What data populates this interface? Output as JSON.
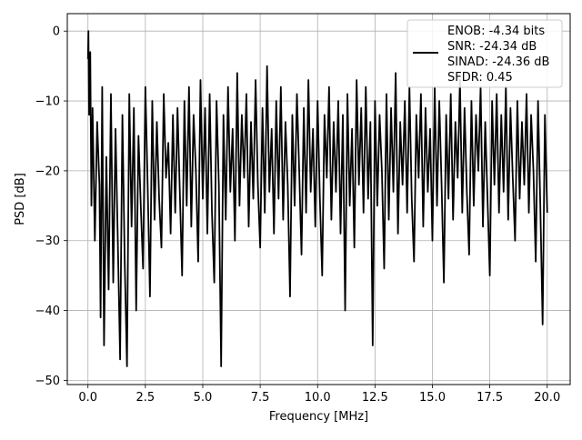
{
  "chart_data": {
    "type": "line",
    "title": "",
    "xlabel": "Frequency [MHz]",
    "ylabel": "PSD [dB]",
    "xlim": [
      -0.9,
      21.0
    ],
    "ylim": [
      -50.6,
      2.5
    ],
    "x_ticks": [
      0.0,
      2.5,
      5.0,
      7.5,
      10.0,
      12.5,
      15.0,
      17.5,
      20.0
    ],
    "x_tick_labels": [
      "0.0",
      "2.5",
      "5.0",
      "7.5",
      "10.0",
      "12.5",
      "15.0",
      "17.5",
      "20.0"
    ],
    "y_ticks": [
      0,
      -10,
      -20,
      -30,
      -40,
      -50
    ],
    "y_tick_labels": [
      "0",
      "−10",
      "−20",
      "−30",
      "−40",
      "−50"
    ],
    "grid": true,
    "legend_position": "top-right",
    "legend_lines": [
      "ENOB: -4.34 bits",
      "SNR: -24.34 dB",
      "SINAD: -24.36 dB",
      "SFDR: 0.45"
    ],
    "line_color": "#000000",
    "series": [
      {
        "name": "ENOB: -4.34 bits",
        "points": [
          [
            0.0,
            -4.0
          ],
          [
            0.02,
            0.0
          ],
          [
            0.05,
            -12.0
          ],
          [
            0.1,
            -3.0
          ],
          [
            0.15,
            -25.0
          ],
          [
            0.2,
            -11.0
          ],
          [
            0.3,
            -30.0
          ],
          [
            0.4,
            -13.0
          ],
          [
            0.5,
            -22.0
          ],
          [
            0.55,
            -41.0
          ],
          [
            0.62,
            -8.0
          ],
          [
            0.7,
            -45.0
          ],
          [
            0.8,
            -18.0
          ],
          [
            0.9,
            -37.0
          ],
          [
            1.0,
            -9.0
          ],
          [
            1.1,
            -36.0
          ],
          [
            1.2,
            -14.0
          ],
          [
            1.3,
            -30.0
          ],
          [
            1.4,
            -47.0
          ],
          [
            1.5,
            -12.0
          ],
          [
            1.6,
            -33.0
          ],
          [
            1.7,
            -48.0
          ],
          [
            1.8,
            -9.0
          ],
          [
            1.9,
            -28.0
          ],
          [
            2.0,
            -11.0
          ],
          [
            2.1,
            -40.0
          ],
          [
            2.2,
            -15.0
          ],
          [
            2.3,
            -25.0
          ],
          [
            2.4,
            -34.0
          ],
          [
            2.5,
            -8.0
          ],
          [
            2.6,
            -22.0
          ],
          [
            2.7,
            -38.0
          ],
          [
            2.8,
            -10.0
          ],
          [
            2.9,
            -27.0
          ],
          [
            3.0,
            -13.0
          ],
          [
            3.1,
            -24.0
          ],
          [
            3.2,
            -31.0
          ],
          [
            3.3,
            -9.0
          ],
          [
            3.4,
            -21.0
          ],
          [
            3.5,
            -16.0
          ],
          [
            3.6,
            -29.0
          ],
          [
            3.7,
            -12.0
          ],
          [
            3.8,
            -26.0
          ],
          [
            3.9,
            -11.0
          ],
          [
            4.0,
            -23.0
          ],
          [
            4.1,
            -35.0
          ],
          [
            4.2,
            -10.0
          ],
          [
            4.3,
            -25.0
          ],
          [
            4.4,
            -8.0
          ],
          [
            4.5,
            -28.0
          ],
          [
            4.6,
            -12.0
          ],
          [
            4.7,
            -20.0
          ],
          [
            4.8,
            -33.0
          ],
          [
            4.9,
            -7.0
          ],
          [
            5.0,
            -24.0
          ],
          [
            5.1,
            -11.0
          ],
          [
            5.2,
            -29.0
          ],
          [
            5.3,
            -9.0
          ],
          [
            5.4,
            -26.0
          ],
          [
            5.5,
            -36.0
          ],
          [
            5.6,
            -10.0
          ],
          [
            5.7,
            -22.0
          ],
          [
            5.8,
            -48.0
          ],
          [
            5.9,
            -12.0
          ],
          [
            6.0,
            -27.0
          ],
          [
            6.1,
            -8.0
          ],
          [
            6.2,
            -23.0
          ],
          [
            6.3,
            -14.0
          ],
          [
            6.4,
            -30.0
          ],
          [
            6.5,
            -6.0
          ],
          [
            6.6,
            -25.0
          ],
          [
            6.7,
            -12.0
          ],
          [
            6.8,
            -21.0
          ],
          [
            6.9,
            -9.0
          ],
          [
            7.0,
            -28.0
          ],
          [
            7.1,
            -13.0
          ],
          [
            7.2,
            -24.0
          ],
          [
            7.3,
            -7.0
          ],
          [
            7.4,
            -22.0
          ],
          [
            7.5,
            -31.0
          ],
          [
            7.6,
            -11.0
          ],
          [
            7.7,
            -26.0
          ],
          [
            7.8,
            -5.0
          ],
          [
            7.9,
            -23.0
          ],
          [
            8.0,
            -14.0
          ],
          [
            8.1,
            -29.0
          ],
          [
            8.2,
            -10.0
          ],
          [
            8.3,
            -24.0
          ],
          [
            8.4,
            -8.0
          ],
          [
            8.5,
            -27.0
          ],
          [
            8.6,
            -13.0
          ],
          [
            8.7,
            -22.0
          ],
          [
            8.8,
            -38.0
          ],
          [
            8.9,
            -12.0
          ],
          [
            9.0,
            -25.0
          ],
          [
            9.1,
            -9.0
          ],
          [
            9.2,
            -20.0
          ],
          [
            9.3,
            -32.0
          ],
          [
            9.4,
            -11.0
          ],
          [
            9.5,
            -26.0
          ],
          [
            9.6,
            -7.0
          ],
          [
            9.7,
            -23.0
          ],
          [
            9.8,
            -14.0
          ],
          [
            9.9,
            -28.0
          ],
          [
            10.0,
            -10.0
          ],
          [
            10.1,
            -24.0
          ],
          [
            10.2,
            -35.0
          ],
          [
            10.3,
            -12.0
          ],
          [
            10.4,
            -21.0
          ],
          [
            10.5,
            -8.0
          ],
          [
            10.6,
            -27.0
          ],
          [
            10.7,
            -13.0
          ],
          [
            10.8,
            -23.0
          ],
          [
            10.9,
            -10.0
          ],
          [
            11.0,
            -29.0
          ],
          [
            11.1,
            -12.0
          ],
          [
            11.2,
            -40.0
          ],
          [
            11.3,
            -9.0
          ],
          [
            11.4,
            -25.0
          ],
          [
            11.5,
            -14.0
          ],
          [
            11.6,
            -31.0
          ],
          [
            11.7,
            -7.0
          ],
          [
            11.8,
            -22.0
          ],
          [
            11.9,
            -11.0
          ],
          [
            12.0,
            -26.0
          ],
          [
            12.1,
            -8.0
          ],
          [
            12.2,
            -24.0
          ],
          [
            12.3,
            -13.0
          ],
          [
            12.4,
            -45.0
          ],
          [
            12.5,
            -10.0
          ],
          [
            12.6,
            -25.0
          ],
          [
            12.7,
            -12.0
          ],
          [
            12.8,
            -20.0
          ],
          [
            12.9,
            -34.0
          ],
          [
            13.0,
            -9.0
          ],
          [
            13.1,
            -27.0
          ],
          [
            13.2,
            -11.0
          ],
          [
            13.3,
            -23.0
          ],
          [
            13.4,
            -6.0
          ],
          [
            13.5,
            -29.0
          ],
          [
            13.6,
            -13.0
          ],
          [
            13.7,
            -22.0
          ],
          [
            13.8,
            -10.0
          ],
          [
            13.9,
            -26.0
          ],
          [
            14.0,
            -8.0
          ],
          [
            14.1,
            -24.0
          ],
          [
            14.2,
            -33.0
          ],
          [
            14.3,
            -12.0
          ],
          [
            14.4,
            -21.0
          ],
          [
            14.5,
            -9.0
          ],
          [
            14.6,
            -28.0
          ],
          [
            14.7,
            -11.0
          ],
          [
            14.8,
            -23.0
          ],
          [
            14.9,
            -14.0
          ],
          [
            15.0,
            -30.0
          ],
          [
            15.1,
            -8.0
          ],
          [
            15.2,
            -25.0
          ],
          [
            15.3,
            -10.0
          ],
          [
            15.4,
            -22.0
          ],
          [
            15.5,
            -36.0
          ],
          [
            15.6,
            -12.0
          ],
          [
            15.7,
            -24.0
          ],
          [
            15.8,
            -9.0
          ],
          [
            15.9,
            -27.0
          ],
          [
            16.0,
            -13.0
          ],
          [
            16.1,
            -21.0
          ],
          [
            16.2,
            -7.0
          ],
          [
            16.3,
            -26.0
          ],
          [
            16.4,
            -11.0
          ],
          [
            16.5,
            -23.0
          ],
          [
            16.6,
            -32.0
          ],
          [
            16.7,
            -10.0
          ],
          [
            16.8,
            -25.0
          ],
          [
            16.9,
            -12.0
          ],
          [
            17.0,
            -20.0
          ],
          [
            17.1,
            -8.0
          ],
          [
            17.2,
            -28.0
          ],
          [
            17.3,
            -13.0
          ],
          [
            17.4,
            -24.0
          ],
          [
            17.5,
            -35.0
          ],
          [
            17.6,
            -10.0
          ],
          [
            17.7,
            -22.0
          ],
          [
            17.8,
            -9.0
          ],
          [
            17.9,
            -26.0
          ],
          [
            18.0,
            -12.0
          ],
          [
            18.1,
            -23.0
          ],
          [
            18.2,
            -8.0
          ],
          [
            18.3,
            -27.0
          ],
          [
            18.4,
            -11.0
          ],
          [
            18.5,
            -21.0
          ],
          [
            18.6,
            -30.0
          ],
          [
            18.7,
            -10.0
          ],
          [
            18.8,
            -24.0
          ],
          [
            18.9,
            -13.0
          ],
          [
            19.0,
            -22.0
          ],
          [
            19.1,
            -9.0
          ],
          [
            19.2,
            -26.0
          ],
          [
            19.3,
            -12.0
          ],
          [
            19.4,
            -20.0
          ],
          [
            19.5,
            -33.0
          ],
          [
            19.6,
            -10.0
          ],
          [
            19.7,
            -25.0
          ],
          [
            19.8,
            -42.0
          ],
          [
            19.9,
            -12.0
          ],
          [
            20.0,
            -26.0
          ]
        ]
      }
    ]
  }
}
